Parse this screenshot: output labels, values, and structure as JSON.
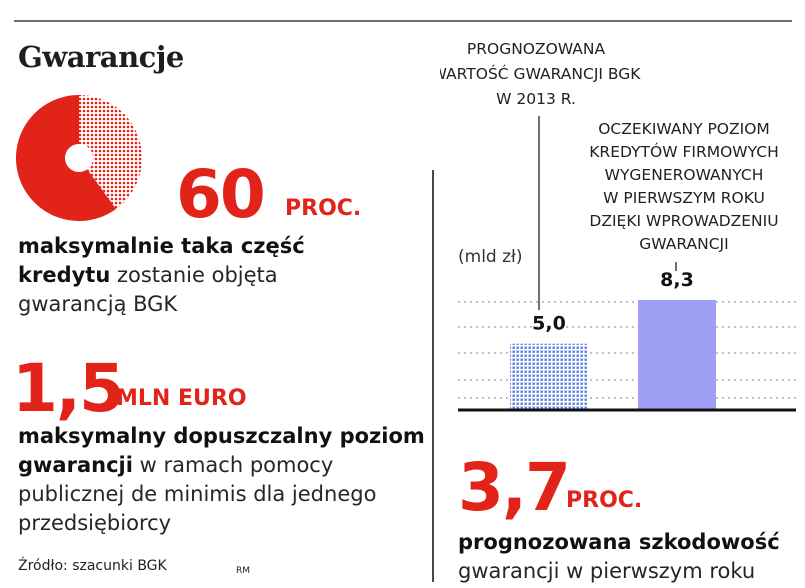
{
  "title": "Gwarancje",
  "stat1": {
    "value": "60",
    "unit": "PROC.",
    "desc_bold": "maksymalnie taka część kredytu",
    "desc_rest": " zostanie objęta gwarancją BGK",
    "share_percent": 60
  },
  "stat2": {
    "value": "1,5",
    "unit": "MLN EURO",
    "desc_bold": "maksymalny dopuszczalny poziom gwarancji",
    "desc_rest": " w ramach pomocy publicznej de minimis dla jednego przedsiębiorcy"
  },
  "stat3": {
    "value": "3,7",
    "unit": "PROC.",
    "desc_bold": "prognozowana szkodowość",
    "desc_rest": " gwarancji w pierwszym roku"
  },
  "source": "Źródło: szacunki BGK",
  "author": "RM",
  "colors": {
    "accent_red": "#e2231a",
    "bar_dotted": "#5b7fe6",
    "bar_solid": "#9f9ff5"
  },
  "chart_data": {
    "type": "bar",
    "unit_label": "(mld zł)",
    "categories": [
      [
        "PROGNOZOWANA",
        "WARTOŚĆ GWARANCJI BGK",
        "W 2013 R."
      ],
      [
        "OCZEKIWANY POZIOM",
        "KREDYTÓW FIRMOWYCH",
        "WYGENEROWANYCH",
        "W PIERWSZYM ROKU",
        "DZIĘKI WPROWADZENIU",
        "GWARANCJI"
      ]
    ],
    "values": [
      5.0,
      8.3
    ],
    "value_labels": [
      "5,0",
      "8,3"
    ],
    "ylim": [
      0,
      10
    ],
    "grid": true
  }
}
